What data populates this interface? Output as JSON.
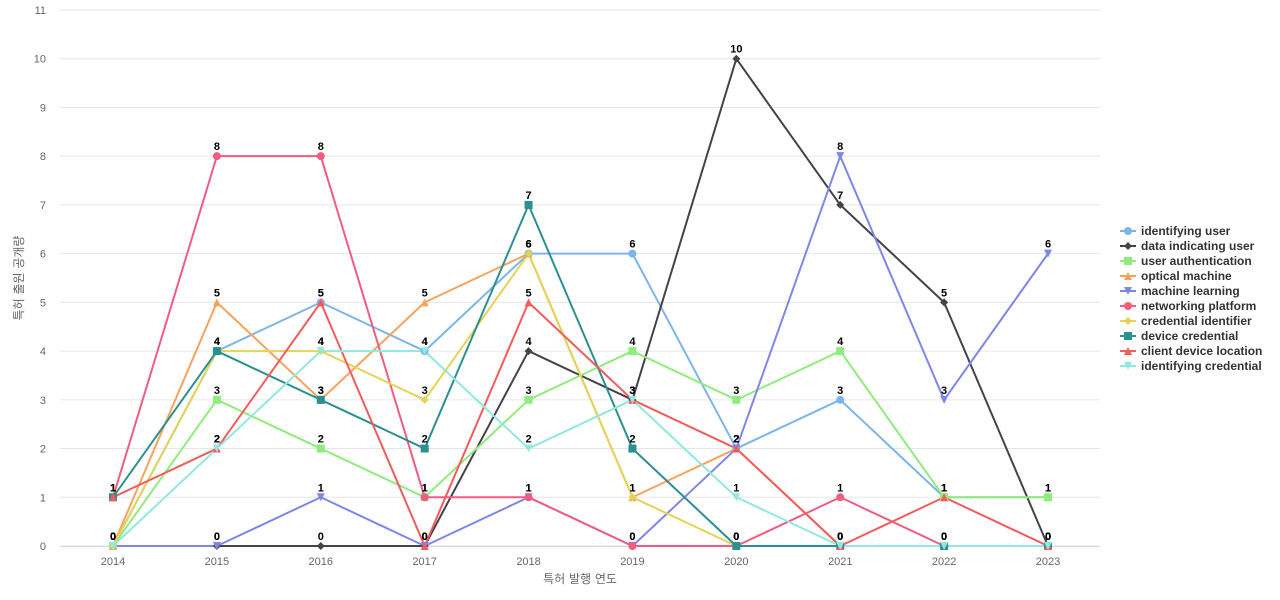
{
  "chart_data": {
    "type": "line",
    "xlabel": "특허 발행 연도",
    "ylabel": "특허 출원 공개량",
    "x": [
      "2014",
      "2015",
      "2016",
      "2017",
      "2018",
      "2019",
      "2020",
      "2021",
      "2022",
      "2023"
    ],
    "ylim": [
      0,
      11
    ],
    "yticks": [
      "0",
      "1",
      "2",
      "3",
      "4",
      "5",
      "6",
      "7",
      "8",
      "9",
      "10",
      "11"
    ],
    "grid": true,
    "legend_position": "right",
    "series": [
      {
        "name": "identifying user",
        "color": "#7cb5ec",
        "marker": "circle",
        "values": [
          0,
          4,
          5,
          4,
          6,
          6,
          2,
          3,
          1,
          1
        ]
      },
      {
        "name": "data indicating user",
        "color": "#434348",
        "marker": "diamond",
        "values": [
          0,
          0,
          0,
          0,
          4,
          3,
          10,
          7,
          5,
          0
        ]
      },
      {
        "name": "user authentication",
        "color": "#90ed7d",
        "marker": "square",
        "values": [
          0,
          3,
          2,
          1,
          3,
          4,
          3,
          4,
          1,
          1
        ]
      },
      {
        "name": "optical machine",
        "color": "#f7a35c",
        "marker": "triangle",
        "values": [
          0,
          5,
          3,
          5,
          6,
          1,
          2,
          0,
          0,
          0
        ]
      },
      {
        "name": "machine learning",
        "color": "#8085e9",
        "marker": "triangle-down",
        "values": [
          0,
          0,
          1,
          0,
          1,
          0,
          2,
          8,
          3,
          6
        ]
      },
      {
        "name": "networking platform",
        "color": "#f15c80",
        "marker": "circle",
        "values": [
          1,
          8,
          8,
          1,
          1,
          0,
          0,
          1,
          0,
          0
        ]
      },
      {
        "name": "credential identifier",
        "color": "#e4d354",
        "marker": "diamond",
        "values": [
          0,
          4,
          4,
          3,
          6,
          1,
          0,
          0,
          0,
          0
        ]
      },
      {
        "name": "device credential",
        "color": "#2b908f",
        "marker": "square",
        "values": [
          1,
          4,
          3,
          2,
          7,
          2,
          0,
          0,
          0,
          0
        ]
      },
      {
        "name": "client device location",
        "color": "#f45b5b",
        "marker": "triangle",
        "values": [
          1,
          2,
          5,
          0,
          5,
          3,
          2,
          0,
          1,
          0
        ]
      },
      {
        "name": "identifying credential",
        "color": "#91e8e1",
        "marker": "triangle-down",
        "values": [
          0,
          2,
          4,
          4,
          2,
          3,
          1,
          0,
          0,
          0
        ]
      }
    ]
  }
}
